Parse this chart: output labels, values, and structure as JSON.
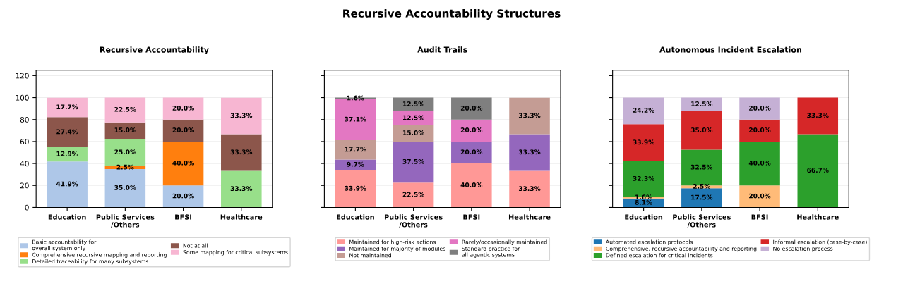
{
  "chart_data": [
    {
      "type": "bar",
      "stacked": true,
      "title": "Recursive Accountability",
      "annotations": [
        "Recursive Accountability Structures"
      ],
      "categories": [
        "Education",
        "Public Services\n/Others",
        "BFSI",
        "Healthcare"
      ],
      "ylim": [
        0,
        125
      ],
      "yticks": [
        0,
        20,
        40,
        60,
        80,
        100,
        120
      ],
      "grid": "y",
      "legend": "bottom",
      "series": [
        {
          "name": "Basic accountability for\noverall system only",
          "color": "#aec7e8",
          "values": [
            41.9,
            35.0,
            20.0,
            null
          ],
          "value_labels": [
            "41.9%",
            "35.0%",
            "20.0%",
            null
          ]
        },
        {
          "name": "Comprehensive recursive mapping and reporting",
          "color": "#ff7f0e",
          "values": [
            null,
            2.5,
            40.0,
            null
          ],
          "value_labels": [
            null,
            "2.5%",
            "40.0%",
            null
          ]
        },
        {
          "name": "Detailed traceability for many subsystems",
          "color": "#98df8a",
          "values": [
            12.9,
            25.0,
            null,
            33.3
          ],
          "value_labels": [
            "12.9%",
            "25.0%",
            null,
            "33.3%"
          ]
        },
        {
          "name": "Not at all",
          "color": "#8c564b",
          "values": [
            27.4,
            15.0,
            20.0,
            33.3
          ],
          "value_labels": [
            "27.4%",
            "15.0%",
            "20.0%",
            "33.3%"
          ]
        },
        {
          "name": "Some mapping for critical subsystems",
          "color": "#f7b6d2",
          "values": [
            17.7,
            22.5,
            20.0,
            33.3
          ],
          "value_labels": [
            "17.7%",
            "22.5%",
            "20.0%",
            "33.3%"
          ]
        }
      ]
    },
    {
      "type": "bar",
      "stacked": true,
      "title": "Audit Trails",
      "categories": [
        "Education",
        "Public Services\n/Others",
        "BFSI",
        "Healthcare"
      ],
      "ylim": [
        0,
        125
      ],
      "yticks": [
        0,
        20,
        40,
        60,
        80,
        100,
        120
      ],
      "grid": "y",
      "legend": "bottom",
      "tick_labels": "x",
      "series": [
        {
          "name": "Maintained for high-risk actions",
          "color": "#ff9896",
          "values": [
            33.9,
            22.5,
            40.0,
            33.3
          ],
          "value_labels": [
            "33.9%",
            "22.5%",
            "40.0%",
            "33.3%"
          ]
        },
        {
          "name": "Maintained for majority of modules",
          "color": "#9467bd",
          "values": [
            9.7,
            37.5,
            20.0,
            33.3
          ],
          "value_labels": [
            "9.7%",
            "37.5%",
            "20.0%",
            "33.3%"
          ]
        },
        {
          "name": "Not maintained",
          "color": "#c49c94",
          "values": [
            17.7,
            15.0,
            null,
            33.3
          ],
          "value_labels": [
            "17.7%",
            "15.0%",
            null,
            "33.3%"
          ]
        },
        {
          "name": "Rarely/occasionally maintained",
          "color": "#e377c2",
          "values": [
            37.1,
            12.5,
            20.0,
            null
          ],
          "value_labels": [
            "37.1%",
            "12.5%",
            "20.0%",
            null
          ]
        },
        {
          "name": "Standard practice for\nall agentic systems",
          "color": "#7f7f7f",
          "values": [
            1.6,
            12.5,
            20.0,
            null
          ],
          "value_labels": [
            "1.6%",
            "12.5%",
            "20.0%",
            null
          ]
        }
      ]
    },
    {
      "type": "bar",
      "stacked": true,
      "title": "Autonomous Incident Escalation",
      "categories": [
        "Education",
        "Public Services\n/Others",
        "BFSI",
        "Healthcare"
      ],
      "ylim": [
        0,
        125
      ],
      "yticks": [
        0,
        20,
        40,
        60,
        80,
        100,
        120
      ],
      "grid": "y",
      "legend": "bottom",
      "tick_labels": "x",
      "series": [
        {
          "name": "Automated escalation protocols",
          "color": "#1f77b4",
          "values": [
            8.1,
            17.5,
            null,
            null
          ],
          "value_labels": [
            "8.1%",
            "17.5%",
            null,
            null
          ]
        },
        {
          "name": "Comprehensive, recursive accountability and reporting",
          "color": "#ffbb78",
          "values": [
            1.6,
            2.5,
            20.0,
            null
          ],
          "value_labels": [
            "1.6%",
            "2.5%",
            "20.0%",
            null
          ]
        },
        {
          "name": "Defined escalation for critical incidents",
          "color": "#2ca02c",
          "values": [
            32.3,
            32.5,
            40.0,
            66.7
          ],
          "value_labels": [
            "32.3%",
            "32.5%",
            "40.0%",
            "66.7%"
          ]
        },
        {
          "name": "Informal escalation (case-by-case)",
          "color": "#d62728",
          "values": [
            33.9,
            35.0,
            20.0,
            33.3
          ],
          "value_labels": [
            "33.9%",
            "35.0%",
            "20.0%",
            "33.3%"
          ]
        },
        {
          "name": "No escalation process",
          "color": "#c5b0d5",
          "values": [
            24.2,
            12.5,
            20.0,
            null
          ],
          "value_labels": [
            "24.2%",
            "12.5%",
            "20.0%",
            null
          ]
        }
      ]
    }
  ]
}
